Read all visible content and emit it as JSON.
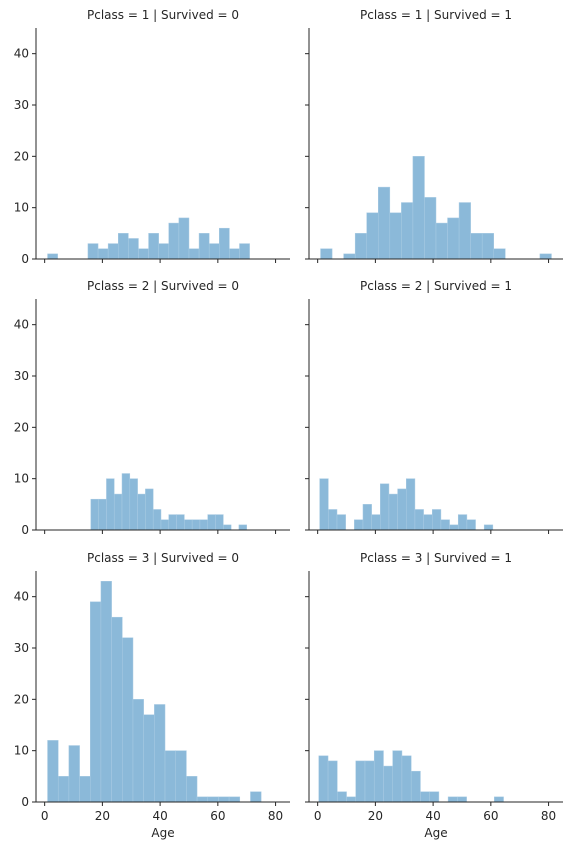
{
  "chart_data": {
    "type": "bar",
    "layout": "facet-grid-3x2",
    "shared_x": true,
    "shared_y": true,
    "xlabel": "Age",
    "xlim": [
      -3,
      85
    ],
    "ylim": [
      0,
      45
    ],
    "xticks": [
      0,
      20,
      40,
      60,
      80
    ],
    "yticks": [
      0,
      10,
      20,
      30,
      40
    ],
    "bar_color": "#8bb9d9",
    "bar_edge_color": "#a9cbe3",
    "bins": 20,
    "panels": [
      {
        "title": "Pclass = 1 | Survived = 0",
        "bin_start": 1.0,
        "bin_width": 3.5,
        "values": [
          1,
          0,
          0,
          0,
          3,
          2,
          3,
          5,
          4,
          2,
          5,
          3,
          7,
          8,
          2,
          5,
          3,
          6,
          2,
          3
        ]
      },
      {
        "title": "Pclass = 1 | Survived = 1",
        "bin_start": 1.0,
        "bin_width": 4.0,
        "values": [
          2,
          0,
          1,
          5,
          9,
          14,
          9,
          11,
          20,
          12,
          7,
          8,
          11,
          5,
          5,
          2,
          0,
          0,
          0,
          1
        ]
      },
      {
        "title": "Pclass = 2 | Survived = 0",
        "bin_start": 16.0,
        "bin_width": 2.7,
        "values": [
          6,
          6,
          10,
          7,
          11,
          10,
          7,
          8,
          4,
          2,
          3,
          3,
          2,
          2,
          2,
          3,
          3,
          1,
          0,
          1
        ]
      },
      {
        "title": "Pclass = 2 | Survived = 1",
        "bin_start": 0.7,
        "bin_width": 3.0,
        "values": [
          10,
          4,
          3,
          0,
          2,
          5,
          3,
          9,
          7,
          8,
          10,
          4,
          3,
          4,
          2,
          1,
          3,
          2,
          0,
          1
        ]
      },
      {
        "title": "Pclass = 3 | Survived = 0",
        "bin_start": 1.0,
        "bin_width": 3.7,
        "values": [
          12,
          5,
          11,
          5,
          39,
          43,
          36,
          32,
          20,
          17,
          19,
          10,
          10,
          5,
          1,
          1,
          1,
          1,
          0,
          2
        ]
      },
      {
        "title": "Pclass = 3 | Survived = 1",
        "bin_start": 0.4,
        "bin_width": 3.2,
        "values": [
          9,
          8,
          2,
          1,
          8,
          8,
          10,
          7,
          10,
          9,
          6,
          2,
          2,
          0,
          1,
          1,
          0,
          0,
          0,
          1
        ]
      }
    ]
  }
}
